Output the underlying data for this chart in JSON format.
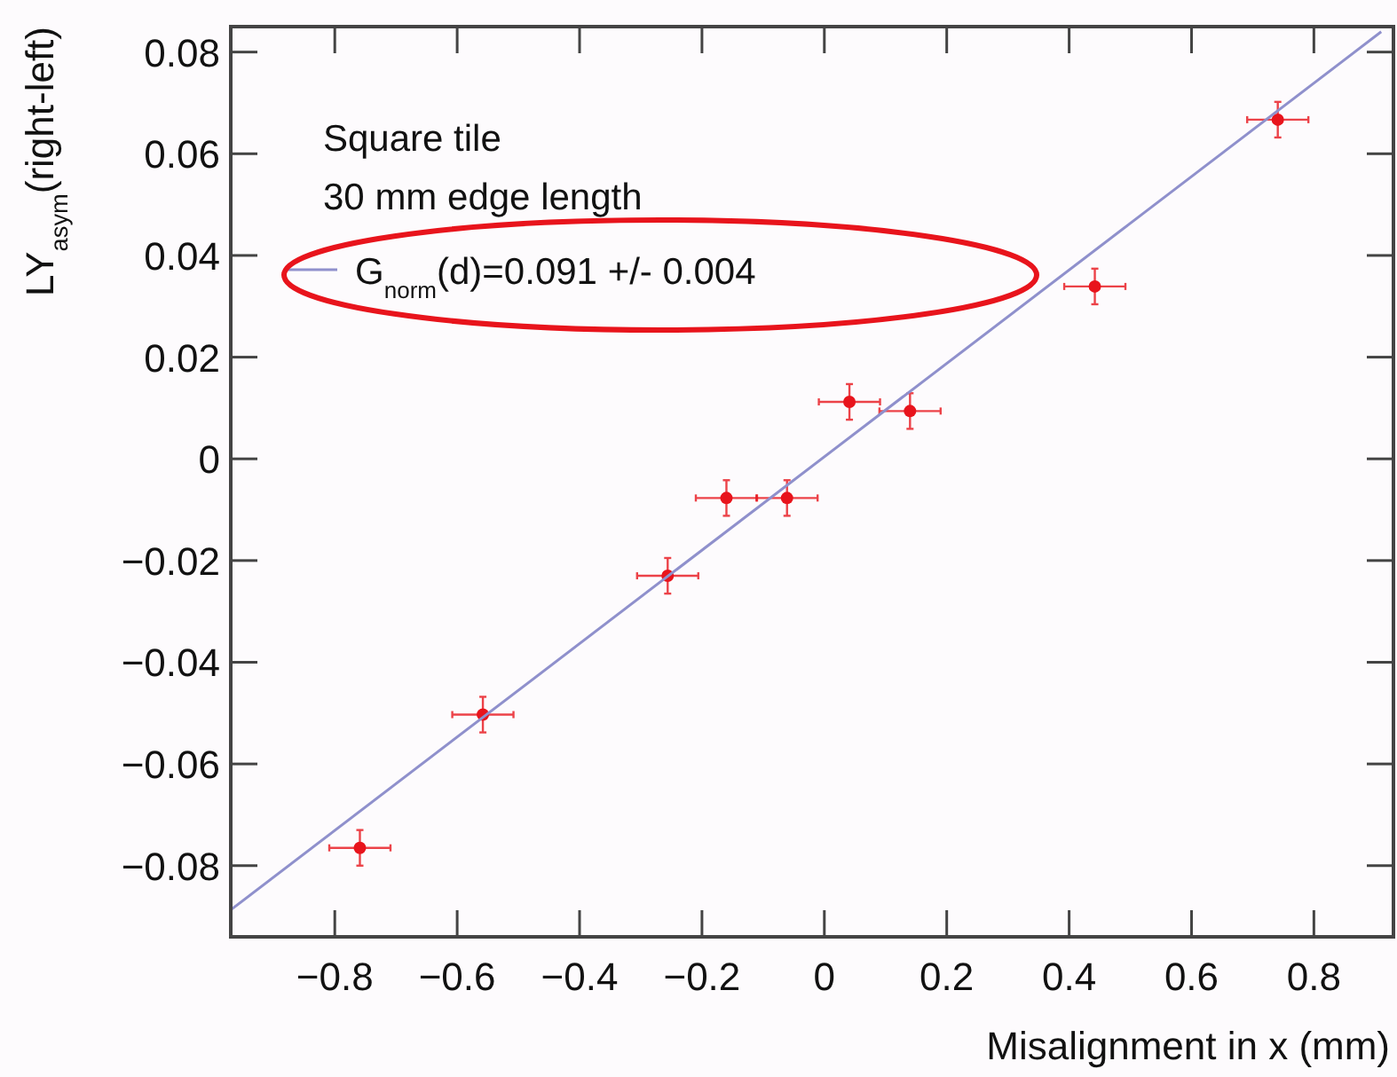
{
  "chart_data": {
    "type": "scatter",
    "xlabel": "Misalignment in x (mm)",
    "ylabel": "LY$_{asym}$(right-left)",
    "xlim": [
      -0.97,
      0.93
    ],
    "ylim": [
      -0.094,
      0.085
    ],
    "xticks": [
      -0.8,
      -0.6,
      -0.4,
      -0.2,
      0,
      0.2,
      0.4,
      0.6,
      0.8
    ],
    "yticks": [
      -0.08,
      -0.06,
      -0.04,
      -0.02,
      0,
      0.02,
      0.04,
      0.06,
      0.08
    ],
    "grid": false,
    "legend": "top left",
    "annotations": [
      "Square tile",
      "30 mm edge length"
    ],
    "series": [
      {
        "color": "#e8141c",
        "marker": "circle",
        "x": [
          -0.759,
          -0.558,
          -0.256,
          -0.16,
          -0.061,
          0.041,
          0.14,
          0.442,
          0.741
        ],
        "values": [
          -0.0765,
          -0.0503,
          -0.023,
          -0.0077,
          -0.0077,
          0.0112,
          0.0094,
          0.0339,
          0.0667
        ],
        "errors": [
          0.0035,
          0.0035,
          0.0035,
          0.0035,
          0.0035,
          0.0035,
          0.0035,
          0.0035,
          0.0035
        ],
        "xerrors": [
          0.05,
          0.05,
          0.05,
          0.05,
          0.05,
          0.05,
          0.05,
          0.05,
          0.05
        ]
      },
      {
        "type": "line",
        "name": "G$_{norm}$(d)=0.091 +/- 0.004",
        "color": "#8f90cc",
        "x": [
          -0.97,
          0.91
        ],
        "values": [
          -0.0887,
          0.084
        ],
        "marker": "none",
        "line_style": "solid"
      }
    ]
  }
}
